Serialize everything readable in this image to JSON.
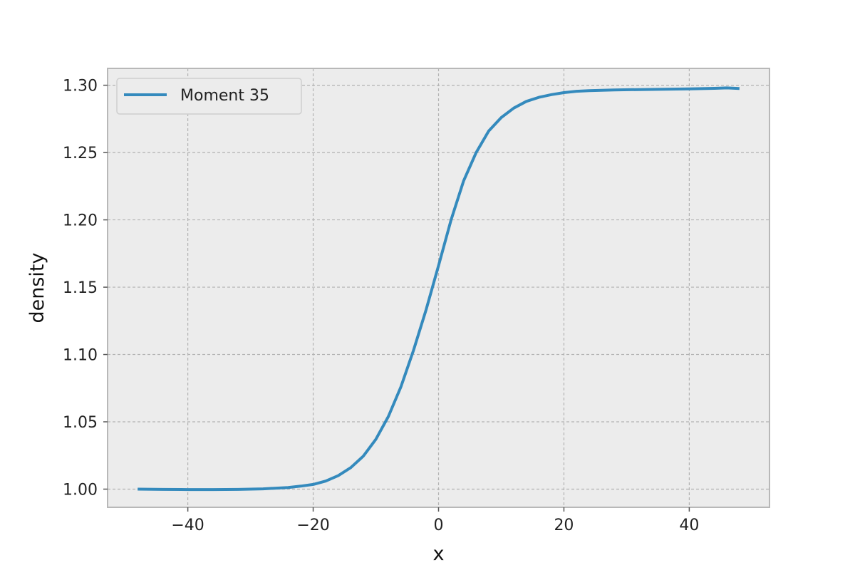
{
  "chart_data": {
    "type": "line",
    "title": "",
    "xlabel": "x",
    "ylabel": "density",
    "xlim": [
      -52.8,
      52.8
    ],
    "ylim": [
      0.9865,
      1.3125
    ],
    "xticks": [
      -40,
      -20,
      0,
      20,
      40
    ],
    "xtick_labels": [
      "−40",
      "−20",
      "0",
      "20",
      "40"
    ],
    "yticks": [
      1.0,
      1.05,
      1.1,
      1.15,
      1.2,
      1.25,
      1.3
    ],
    "ytick_labels": [
      "1.00",
      "1.05",
      "1.10",
      "1.15",
      "1.20",
      "1.25",
      "1.30"
    ],
    "grid": true,
    "legend_position": "top-left",
    "background": "#ececec",
    "series": [
      {
        "name": "Moment 35",
        "color": "#348abd",
        "x": [
          -48,
          -44,
          -40,
          -36,
          -32,
          -28,
          -24,
          -22,
          -20,
          -18,
          -16,
          -14,
          -12,
          -10,
          -8,
          -6,
          -4,
          -2,
          0,
          2,
          4,
          6,
          8,
          10,
          12,
          14,
          16,
          18,
          20,
          22,
          24,
          28,
          32,
          36,
          40,
          44,
          46,
          48
        ],
        "y": [
          1.0,
          0.9998,
          0.9997,
          0.9997,
          0.9998,
          1.0002,
          1.0012,
          1.0022,
          1.0035,
          1.006,
          1.01,
          1.016,
          1.0245,
          1.037,
          1.054,
          1.076,
          1.103,
          1.133,
          1.166,
          1.2,
          1.229,
          1.25,
          1.266,
          1.276,
          1.283,
          1.288,
          1.291,
          1.293,
          1.2945,
          1.2955,
          1.296,
          1.2965,
          1.2968,
          1.297,
          1.2973,
          1.2977,
          1.298,
          1.2975
        ]
      }
    ]
  }
}
